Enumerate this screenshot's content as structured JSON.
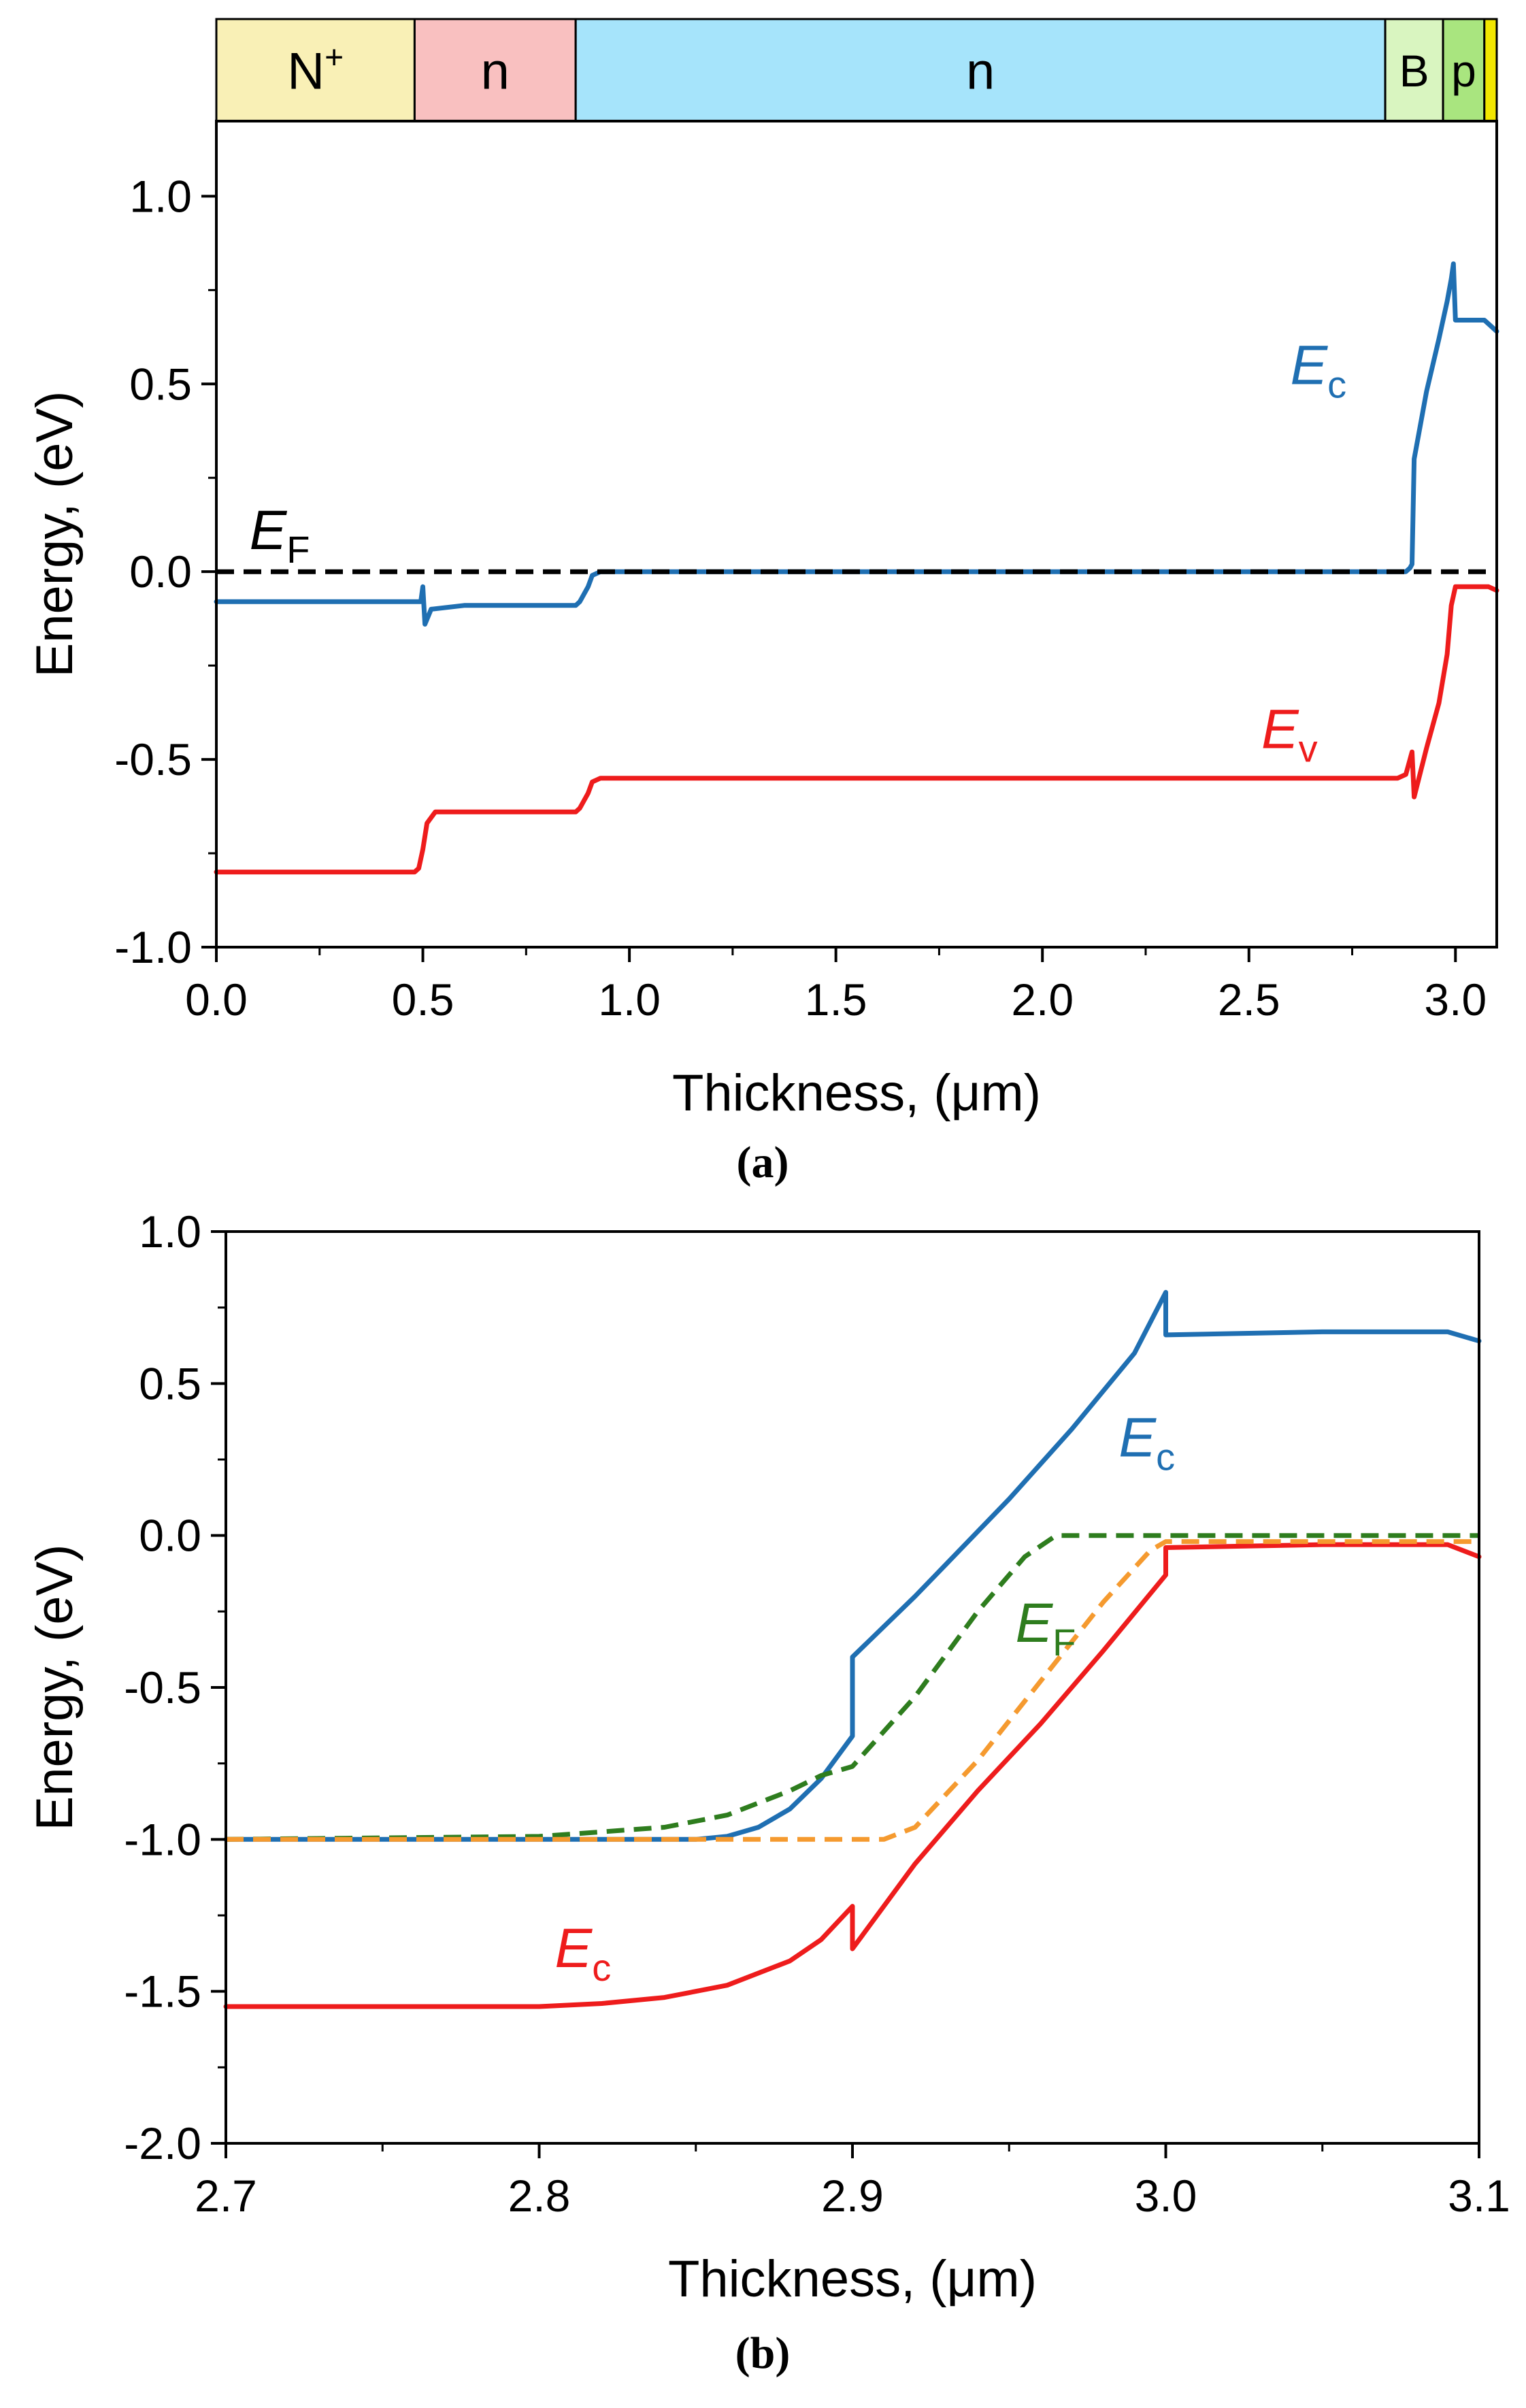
{
  "chart_data": [
    {
      "panel_label": "(a)",
      "type": "line",
      "xlabel": "Thickness, (μm)",
      "ylabel": "Energy, (eV)",
      "xlim": [
        0.0,
        3.1
      ],
      "ylim": [
        -1.0,
        1.2
      ],
      "x_ticks": [
        0.0,
        0.5,
        1.0,
        1.5,
        2.0,
        2.5,
        3.0
      ],
      "x_tick_labels": [
        "0.0",
        "0.5",
        "1.0",
        "1.5",
        "2.0",
        "2.5",
        "3.0"
      ],
      "y_ticks": [
        -1.0,
        -0.5,
        0.0,
        0.5,
        1.0
      ],
      "y_tick_labels": [
        "-1.0",
        "-0.5",
        "0.0",
        "0.5",
        "1.0"
      ],
      "layers": [
        {
          "label": "N",
          "sup": "+",
          "x0": 0.0,
          "x1": 0.48,
          "color": "#f9f0b6"
        },
        {
          "label": "n",
          "sup": "",
          "x0": 0.48,
          "x1": 0.87,
          "color": "#f9c0c0"
        },
        {
          "label": "n",
          "sup": "",
          "x0": 0.87,
          "x1": 2.83,
          "color": "#a6e4fb"
        },
        {
          "label": "B",
          "sup": "",
          "x0": 2.83,
          "x1": 2.97,
          "color": "#d9f5c0"
        },
        {
          "label": "p",
          "sup": "",
          "x0": 2.97,
          "x1": 3.07,
          "color": "#a9e57f"
        },
        {
          "label": "",
          "sup": "",
          "x0": 3.07,
          "x1": 3.1,
          "color": "#f2e600"
        }
      ],
      "series": [
        {
          "name": "Ec",
          "label_main": "E",
          "label_sub": "c",
          "color": "#1f6fb2",
          "dashed": false,
          "label_at": [
            2.6,
            0.5
          ],
          "x": [
            0.0,
            0.48,
            0.495,
            0.5,
            0.505,
            0.52,
            0.6,
            0.87,
            0.88,
            0.9,
            0.91,
            0.93,
            1.0,
            2.85,
            2.88,
            2.89,
            2.895,
            2.9,
            2.93,
            2.96,
            2.98,
            2.99,
            2.995,
            3.0,
            3.07,
            3.08,
            3.1
          ],
          "values": [
            -0.08,
            -0.08,
            -0.08,
            -0.04,
            -0.14,
            -0.1,
            -0.09,
            -0.09,
            -0.08,
            -0.04,
            -0.01,
            0.0,
            0.0,
            0.0,
            0.0,
            0.01,
            0.02,
            0.3,
            0.48,
            0.62,
            0.72,
            0.78,
            0.82,
            0.67,
            0.67,
            0.66,
            0.64
          ]
        },
        {
          "name": "Ev",
          "label_main": "E",
          "label_sub": "v",
          "color": "#ee1c1c",
          "dashed": false,
          "label_at": [
            2.53,
            -0.47
          ],
          "x": [
            0.0,
            0.48,
            0.49,
            0.5,
            0.51,
            0.53,
            0.87,
            0.88,
            0.9,
            0.91,
            0.93,
            1.0,
            2.86,
            2.88,
            2.89,
            2.895,
            2.9,
            2.93,
            2.96,
            2.98,
            2.99,
            3.0,
            3.07,
            3.08,
            3.1
          ],
          "values": [
            -0.8,
            -0.8,
            -0.79,
            -0.74,
            -0.67,
            -0.64,
            -0.64,
            -0.63,
            -0.59,
            -0.56,
            -0.55,
            -0.55,
            -0.55,
            -0.54,
            -0.5,
            -0.48,
            -0.6,
            -0.47,
            -0.35,
            -0.22,
            -0.09,
            -0.04,
            -0.04,
            -0.04,
            -0.05
          ]
        },
        {
          "name": "EF",
          "label_main": "E",
          "label_sub": "F",
          "color": "#000000",
          "dashed": true,
          "label_at": [
            0.08,
            0.06
          ],
          "x": [
            0.0,
            3.1
          ],
          "values": [
            0.0,
            0.0
          ]
        }
      ]
    },
    {
      "panel_label": "(b)",
      "type": "line",
      "xlabel": "Thickness, (μm)",
      "ylabel": "Energy, (eV)",
      "xlim": [
        2.7,
        3.1
      ],
      "ylim": [
        -2.0,
        1.0
      ],
      "x_ticks": [
        2.7,
        2.8,
        2.9,
        3.0,
        3.1
      ],
      "x_tick_labels": [
        "2.7",
        "2.8",
        "2.9",
        "3.0",
        "3.1"
      ],
      "y_ticks": [
        -2.0,
        -1.5,
        -1.0,
        -0.5,
        0.0,
        0.5,
        1.0
      ],
      "y_tick_labels": [
        "-2.0",
        "-1.5",
        "-1.0",
        "-0.5",
        "0.0",
        "0.5",
        "1.0"
      ],
      "series": [
        {
          "name": "Ec (upper)",
          "label_main": "E",
          "label_sub": "c",
          "color": "#1f6fb2",
          "dashed": false,
          "label_at": [
            2.985,
            0.26
          ],
          "x": [
            2.7,
            2.85,
            2.86,
            2.87,
            2.88,
            2.89,
            2.9,
            2.9,
            2.92,
            2.95,
            2.97,
            2.99,
            3.0,
            3.0,
            3.05,
            3.09,
            3.1
          ],
          "values": [
            -1.0,
            -1.0,
            -0.99,
            -0.96,
            -0.9,
            -0.8,
            -0.66,
            -0.4,
            -0.2,
            0.12,
            0.35,
            0.6,
            0.8,
            0.66,
            0.67,
            0.67,
            0.64
          ]
        },
        {
          "name": "Ec (lower)",
          "label_main": "E",
          "label_sub": "c",
          "color": "#ee1c1c",
          "dashed": false,
          "label_at": [
            2.805,
            -1.42
          ],
          "x": [
            2.7,
            2.8,
            2.82,
            2.84,
            2.86,
            2.88,
            2.89,
            2.9,
            2.9,
            2.92,
            2.94,
            2.96,
            2.98,
            3.0,
            3.0,
            3.05,
            3.09,
            3.1
          ],
          "values": [
            -1.55,
            -1.55,
            -1.54,
            -1.52,
            -1.48,
            -1.4,
            -1.33,
            -1.22,
            -1.36,
            -1.08,
            -0.84,
            -0.62,
            -0.38,
            -0.13,
            -0.04,
            -0.03,
            -0.03,
            -0.07
          ]
        },
        {
          "name": "EF (electrons)",
          "label_main": "E",
          "label_sub": "F",
          "color": "#2e7d1e",
          "dashed": true,
          "label_at": [
            2.952,
            -0.35
          ],
          "x": [
            2.7,
            2.8,
            2.84,
            2.86,
            2.88,
            2.89,
            2.9,
            2.92,
            2.94,
            2.955,
            2.965,
            3.0,
            3.1
          ],
          "values": [
            -1.0,
            -0.99,
            -0.96,
            -0.92,
            -0.84,
            -0.79,
            -0.76,
            -0.53,
            -0.25,
            -0.07,
            0.0,
            0.0,
            0.0
          ]
        },
        {
          "name": "EF (holes)",
          "label_main": "",
          "label_sub": "",
          "color": "#f59a2f",
          "dashed": true,
          "label_at": null,
          "x": [
            2.7,
            2.9,
            2.91,
            2.92,
            2.94,
            2.96,
            2.98,
            2.995,
            3.0,
            3.1
          ],
          "values": [
            -1.0,
            -1.0,
            -1.0,
            -0.96,
            -0.74,
            -0.48,
            -0.22,
            -0.05,
            -0.02,
            -0.02
          ]
        }
      ]
    }
  ]
}
